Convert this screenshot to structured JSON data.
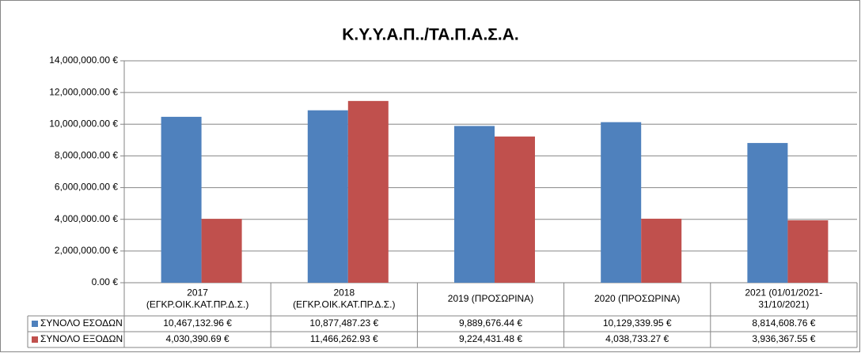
{
  "chart_data": {
    "type": "bar",
    "title": "Κ.Υ.Υ.Α.Π../ΤΑ.Π.Α.Σ.Α.",
    "categories": [
      "2017\n(ΕΓΚΡ.ΟΙΚ.ΚΑΤ.ΠΡ.Δ.Σ.)",
      "2018\n(ΕΓΚΡ.ΟΙΚ.ΚΑΤ.ΠΡ.Δ.Σ.)",
      "2019 (ΠΡΟΣΩΡΙΝΑ)",
      "2020 (ΠΡΟΣΩΡΙΝΑ)",
      "2021  (01/01/2021-\n31/10/2021)"
    ],
    "series": [
      {
        "name": "ΣΥΝΟΛΟ ΕΣΟΔΩΝ",
        "color": "#4f81bd",
        "values": [
          10467132.96,
          10877487.23,
          9889676.44,
          10129339.95,
          8814608.76
        ],
        "value_labels": [
          "10,467,132.96 €",
          "10,877,487.23 €",
          "9,889,676.44 €",
          "10,129,339.95 €",
          "8,814,608.76 €"
        ]
      },
      {
        "name": "ΣΥΝΟΛΟ ΕΞΟΔΩΝ",
        "color": "#c0504d",
        "values": [
          4030390.69,
          11466262.93,
          9224431.48,
          4038733.27,
          3936367.55
        ],
        "value_labels": [
          "4,030,390.69 €",
          "11,466,262.93 €",
          "9,224,431.48 €",
          "4,038,733.27 €",
          "3,936,367.55 €"
        ]
      }
    ],
    "ylim": [
      0,
      14000000
    ],
    "yticks": [
      {
        "value": 0,
        "label": "0.00 €"
      },
      {
        "value": 2000000,
        "label": "2,000,000.00 €"
      },
      {
        "value": 4000000,
        "label": "4,000,000.00 €"
      },
      {
        "value": 6000000,
        "label": "6,000,000.00 €"
      },
      {
        "value": 8000000,
        "label": "8,000,000.00 €"
      },
      {
        "value": 10000000,
        "label": "10,000,000.00 €"
      },
      {
        "value": 12000000,
        "label": "12,000,000.00 €"
      },
      {
        "value": 14000000,
        "label": "14,000,000.00 €"
      }
    ],
    "grid": true
  }
}
